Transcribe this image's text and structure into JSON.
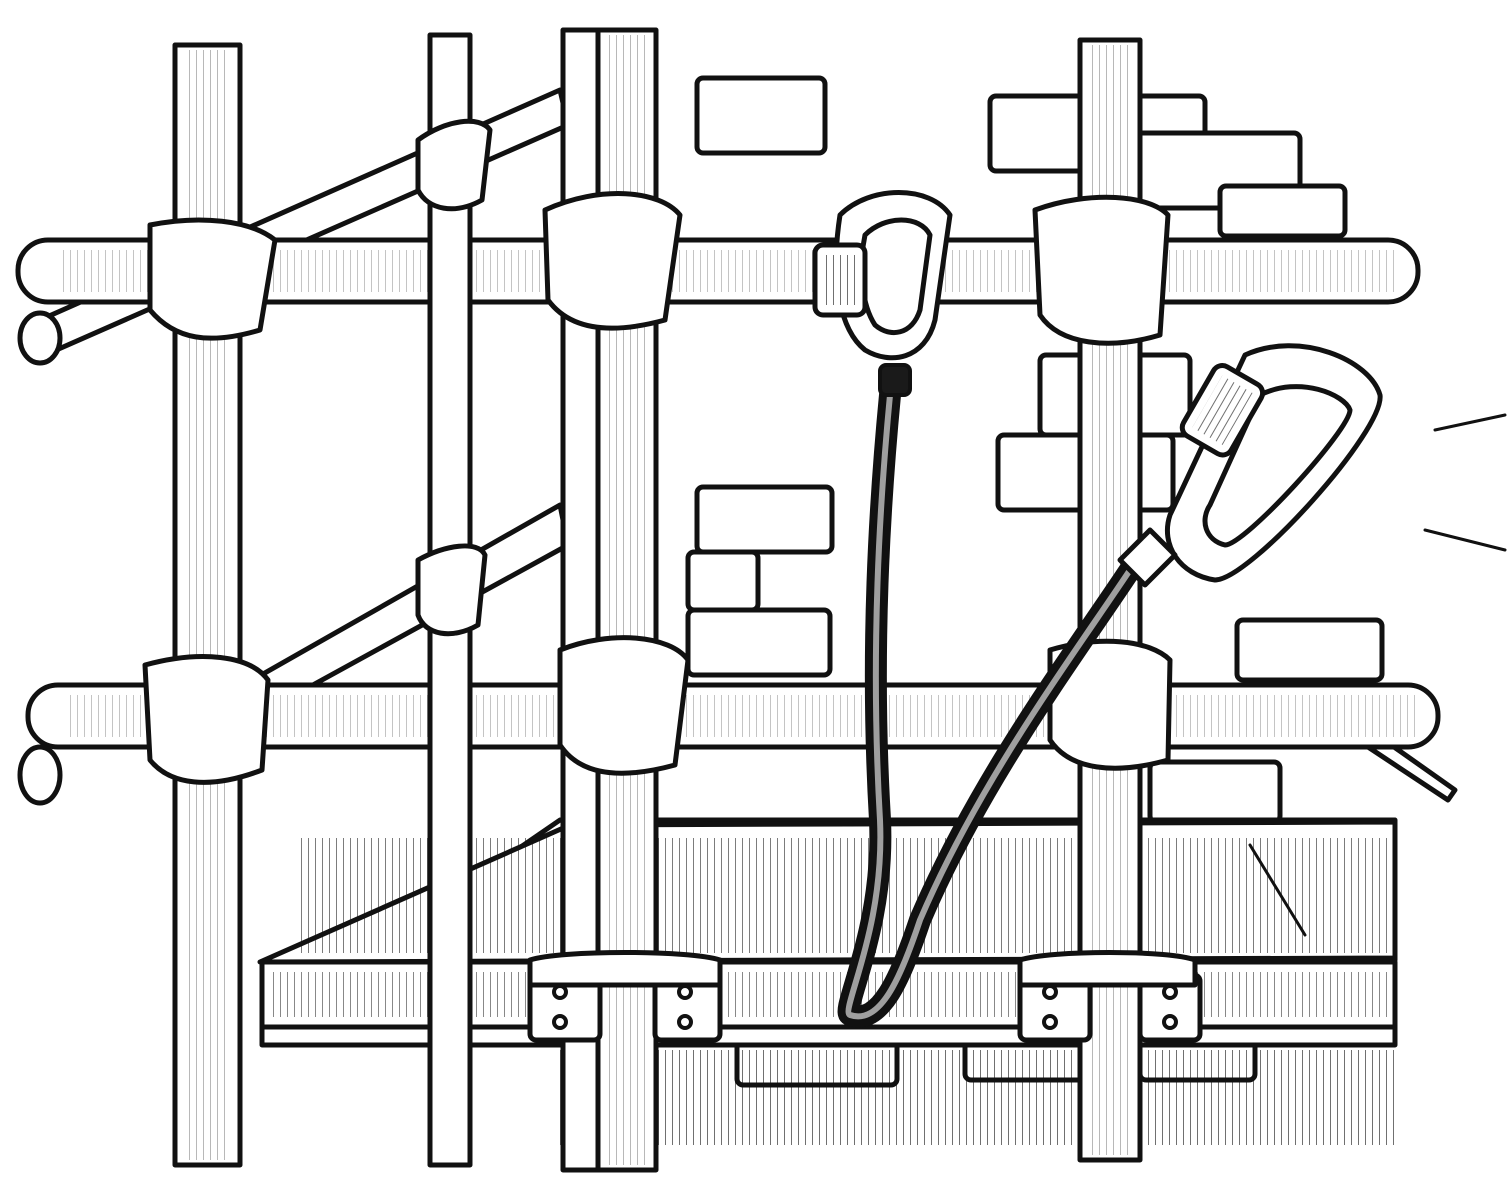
{
  "illustration": {
    "style": "black ink line drawing",
    "colors": {
      "ink": "#111111",
      "paper": "#ffffff"
    },
    "icons": [
      "scaffold-tube",
      "rope-lashing",
      "brick-wall",
      "scaffold-board",
      "pipe-clamp",
      "carabiner",
      "lanyard",
      "motion-lines"
    ]
  }
}
